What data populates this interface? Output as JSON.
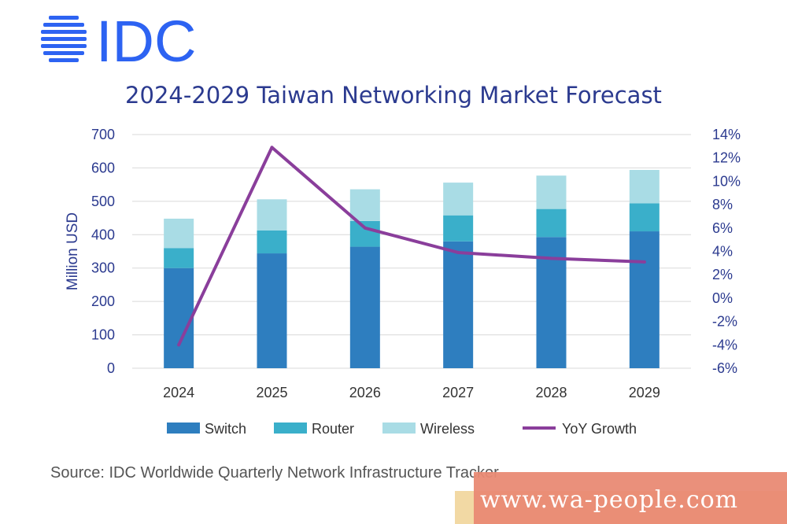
{
  "logo": {
    "text": "IDC",
    "icon": "globe-stripes-icon",
    "color": "#2d63f2"
  },
  "chart_data": {
    "type": "bar",
    "title": "2024-2029 Taiwan Networking Market Forecast",
    "categories": [
      "2024",
      "2025",
      "2026",
      "2027",
      "2028",
      "2029"
    ],
    "stacked": true,
    "ylabel": "Million USD",
    "ylim": [
      0,
      700
    ],
    "yticks": [
      "0",
      "100",
      "200",
      "300",
      "400",
      "500",
      "600",
      "700"
    ],
    "y2lim": [
      -6,
      14
    ],
    "y2ticks": [
      "-6%",
      "-4%",
      "-2%",
      "0%",
      "2%",
      "4%",
      "6%",
      "8%",
      "10%",
      "12%",
      "14%"
    ],
    "grid": true,
    "legend_position": "bottom",
    "series": [
      {
        "name": "Switch",
        "type": "bar",
        "color": "#2e7ebf",
        "values": [
          300,
          344,
          364,
          380,
          393,
          410
        ]
      },
      {
        "name": "Router",
        "type": "bar",
        "color": "#3aafca",
        "values": [
          60,
          69,
          77,
          78,
          84,
          84
        ]
      },
      {
        "name": "Wireless",
        "type": "bar",
        "color": "#a9dce5",
        "values": [
          88,
          93,
          95,
          98,
          100,
          100
        ]
      },
      {
        "name": "YoY Growth",
        "type": "line",
        "axis": "right",
        "unit": "%",
        "color": "#8a3e9b",
        "values": [
          -4.0,
          12.9,
          6.0,
          3.9,
          3.4,
          3.1
        ]
      }
    ]
  },
  "source": "Source: IDC Worldwide Quarterly Network Infrastructure Tracker",
  "watermark": "www.wa-people.com"
}
